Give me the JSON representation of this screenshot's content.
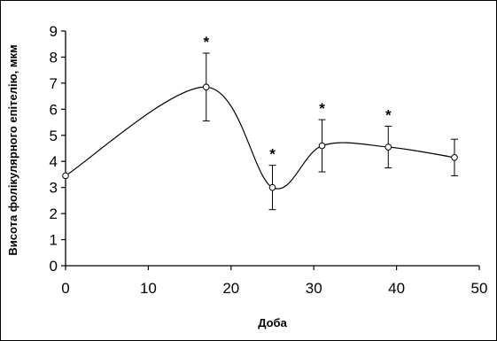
{
  "chart_data": {
    "type": "line",
    "title": "",
    "xlabel": "Доба",
    "ylabel": "Висота фолікулярного епітелію, мкм",
    "xlim": [
      0,
      50
    ],
    "ylim": [
      0,
      9
    ],
    "x_ticks": [
      "0",
      "10",
      "20",
      "30",
      "40",
      "50"
    ],
    "y_ticks": [
      "0",
      "1",
      "2",
      "3",
      "4",
      "5",
      "6",
      "7",
      "8",
      "9"
    ],
    "grid": false,
    "legend": "none",
    "line_color": "#000000",
    "marker": "open-circle",
    "series": [
      {
        "x": [
          0,
          17,
          25,
          31,
          39,
          47
        ],
        "y": [
          3.45,
          6.85,
          3.0,
          4.6,
          4.55,
          4.15
        ],
        "error": [
          null,
          1.3,
          0.85,
          1.0,
          0.8,
          0.7
        ],
        "significant": [
          false,
          true,
          true,
          true,
          true,
          false
        ]
      }
    ],
    "significance_marker": "*"
  }
}
